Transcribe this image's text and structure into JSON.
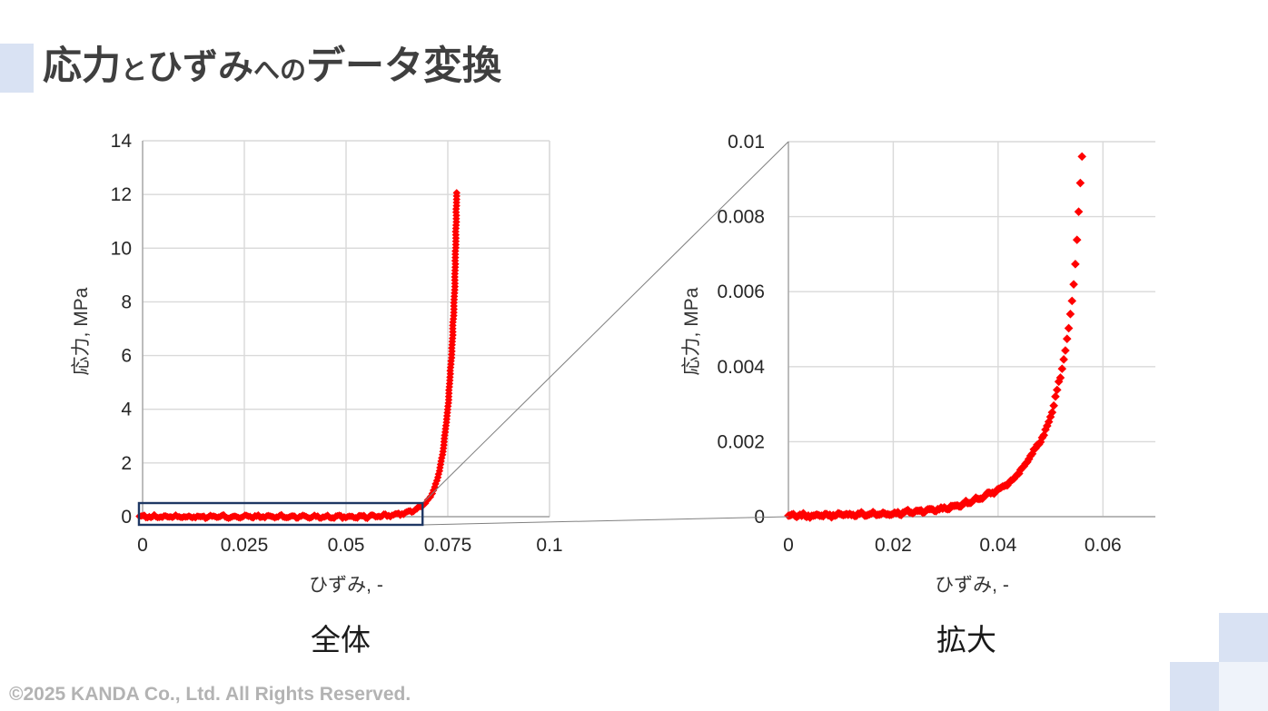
{
  "title": {
    "text": "応力とひずみへのデータ変換",
    "segments": [
      {
        "t": "応力",
        "s": "l"
      },
      {
        "t": "と",
        "s": "s"
      },
      {
        "t": "ひずみ",
        "s": "m"
      },
      {
        "t": "への",
        "s": "s"
      },
      {
        "t": "データ変換",
        "s": "l"
      }
    ]
  },
  "footer": {
    "text": "©2025 KANDA Co., Ltd. All Rights Reserved."
  },
  "colors": {
    "title_text": "#3f3f3f",
    "marker_red": "#ff0000",
    "gridline": "#d9d9d9",
    "axis_line": "#a6a6a6",
    "zoom_rect_border": "#1f3864",
    "connector_line": "#808080",
    "tick_label": "#262626",
    "footer_text": "#b3b3b3",
    "deco_blue": "#d9e2f3",
    "deco_blue_faint": "#eff3fa"
  },
  "chart_data": [
    {
      "type": "scatter",
      "id": "overall",
      "caption": "全体",
      "xlabel": "ひずみ, -",
      "ylabel": "応力, MPa",
      "xlim": [
        0,
        0.1
      ],
      "ylim": [
        0,
        14
      ],
      "xticks": [
        0,
        0.025,
        0.05,
        0.075,
        0.1
      ],
      "xtick_labels": [
        "0",
        "0.025",
        "0.05",
        "0.075",
        "0.1"
      ],
      "yticks": [
        0,
        2,
        4,
        6,
        8,
        10,
        12,
        14
      ],
      "ytick_labels": [
        "0",
        "2",
        "4",
        "6",
        "8",
        "10",
        "12",
        "14"
      ],
      "grid": true,
      "legend": "none",
      "marker": "diamond",
      "marker_px": 4.2,
      "series_color": "#ff0000",
      "curve_anchors": [
        [
          0,
          2e-05
        ],
        [
          0.005,
          3e-05
        ],
        [
          0.01,
          5e-05
        ],
        [
          0.015,
          6.5e-05
        ],
        [
          0.02,
          8e-05
        ],
        [
          0.025,
          0.00015
        ],
        [
          0.03,
          0.00022
        ],
        [
          0.035,
          0.0004
        ],
        [
          0.04,
          0.0007
        ],
        [
          0.0425,
          0.00095
        ],
        [
          0.045,
          0.00135
        ],
        [
          0.0475,
          0.0019
        ],
        [
          0.049,
          0.00225
        ],
        [
          0.0505,
          0.0029
        ],
        [
          0.052,
          0.0038
        ],
        [
          0.0535,
          0.005
        ],
        [
          0.0545,
          0.0063
        ],
        [
          0.0552,
          0.0077
        ],
        [
          0.056,
          0.0096
        ],
        [
          0.058,
          0.02
        ],
        [
          0.06,
          0.04
        ],
        [
          0.062,
          0.07
        ],
        [
          0.064,
          0.12
        ],
        [
          0.066,
          0.2
        ],
        [
          0.068,
          0.32
        ],
        [
          0.0695,
          0.5
        ],
        [
          0.071,
          0.8
        ],
        [
          0.0725,
          1.4
        ],
        [
          0.0738,
          2.4
        ],
        [
          0.075,
          4.0
        ],
        [
          0.076,
          6.2
        ],
        [
          0.0767,
          8.5
        ],
        [
          0.0772,
          12.06
        ]
      ],
      "samples": [
        {
          "mode": "x",
          "from": -0.0008,
          "to": 0.0686,
          "n": 172,
          "jitter_y": 0.07
        },
        {
          "mode": "y",
          "from": 0.38,
          "to": 12.06,
          "n": 98,
          "jitter_x": 7e-05
        }
      ],
      "seed": 13,
      "zoom_rect": {
        "x": [
          -0.0009,
          0.0688
        ],
        "y": [
          -0.304,
          0.507
        ]
      }
    },
    {
      "type": "scatter",
      "id": "enlarged",
      "caption": "拡大",
      "xlabel": "ひずみ, -",
      "ylabel": "応力, MPa",
      "xlim": [
        0,
        0.07
      ],
      "ylim": [
        0,
        0.01
      ],
      "xticks": [
        0,
        0.02,
        0.04,
        0.06
      ],
      "xtick_labels": [
        "0",
        "0.02",
        "0.04",
        "0.06"
      ],
      "yticks": [
        0,
        0.002,
        0.004,
        0.006,
        0.008,
        0.01
      ],
      "ytick_labels": [
        "0",
        "0.002",
        "0.004",
        "0.006",
        "0.008",
        "0.01"
      ],
      "grid": true,
      "legend": "none",
      "marker": "diamond",
      "marker_px": 4.8,
      "series_color": "#ff0000",
      "curve_anchors": [
        [
          0,
          2e-05
        ],
        [
          0.005,
          3e-05
        ],
        [
          0.01,
          5e-05
        ],
        [
          0.015,
          6.5e-05
        ],
        [
          0.02,
          8e-05
        ],
        [
          0.025,
          0.00015
        ],
        [
          0.03,
          0.00022
        ],
        [
          0.035,
          0.0004
        ],
        [
          0.04,
          0.0007
        ],
        [
          0.0425,
          0.00095
        ],
        [
          0.045,
          0.00135
        ],
        [
          0.0475,
          0.0019
        ],
        [
          0.049,
          0.00225
        ],
        [
          0.0505,
          0.0029
        ],
        [
          0.052,
          0.0038
        ],
        [
          0.0535,
          0.005
        ],
        [
          0.0545,
          0.0063
        ],
        [
          0.0552,
          0.0077
        ],
        [
          0.056,
          0.0096
        ]
      ],
      "samples": [
        {
          "mode": "x",
          "from": 0.0,
          "to": 0.056,
          "n": 178,
          "jitter_y": 6e-05
        }
      ],
      "seed": 7
    }
  ]
}
